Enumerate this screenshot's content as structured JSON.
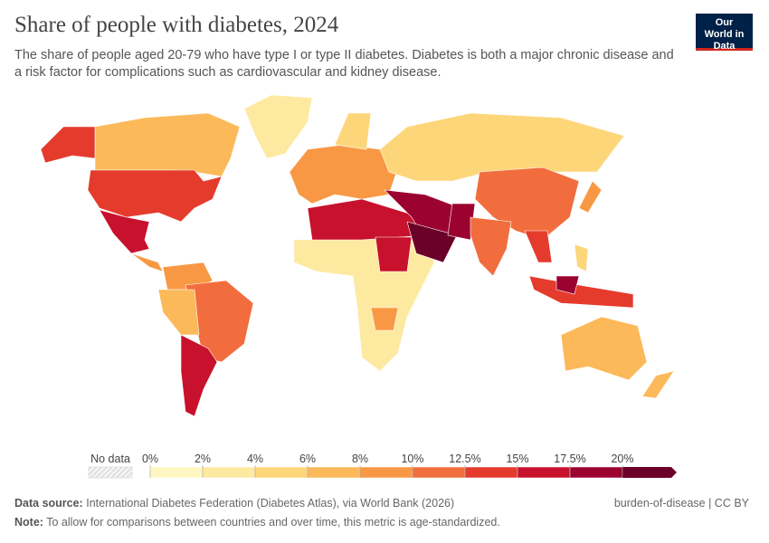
{
  "header": {
    "title": "Share of people with diabetes, 2024",
    "subtitle": "The share of people aged 20-79 who have type I or type II diabetes. Diabetes is both a major chronic disease and a risk factor for complications such as cardiovascular and kidney disease.",
    "logo": "Our World in Data"
  },
  "legend": {
    "no_data": "No data",
    "ticks": [
      {
        "value": 0,
        "label": "0%"
      },
      {
        "value": 2,
        "label": "2%"
      },
      {
        "value": 4,
        "label": "4%"
      },
      {
        "value": 6,
        "label": "6%"
      },
      {
        "value": 8,
        "label": "8%"
      },
      {
        "value": 10,
        "label": "10%"
      },
      {
        "value": 12.5,
        "label": "12.5%"
      },
      {
        "value": 15,
        "label": "15%"
      },
      {
        "value": 17.5,
        "label": "17.5%"
      },
      {
        "value": 20,
        "label": "20%"
      }
    ],
    "colors": [
      "#fff7c2",
      "#fde9a0",
      "#fdd67a",
      "#fcb95a",
      "#f99844",
      "#f26d3d",
      "#e43b2d",
      "#c8112c",
      "#9c0230",
      "#6b0028"
    ]
  },
  "footer": {
    "source_label": "Data source:",
    "source": "International Diabetes Federation (Diabetes Atlas), via World Bank (2026)",
    "license": "burden-of-disease | CC BY",
    "note_label": "Note:",
    "note": "To allow for comparisons between countries and over time, this metric is age-standardized."
  }
}
